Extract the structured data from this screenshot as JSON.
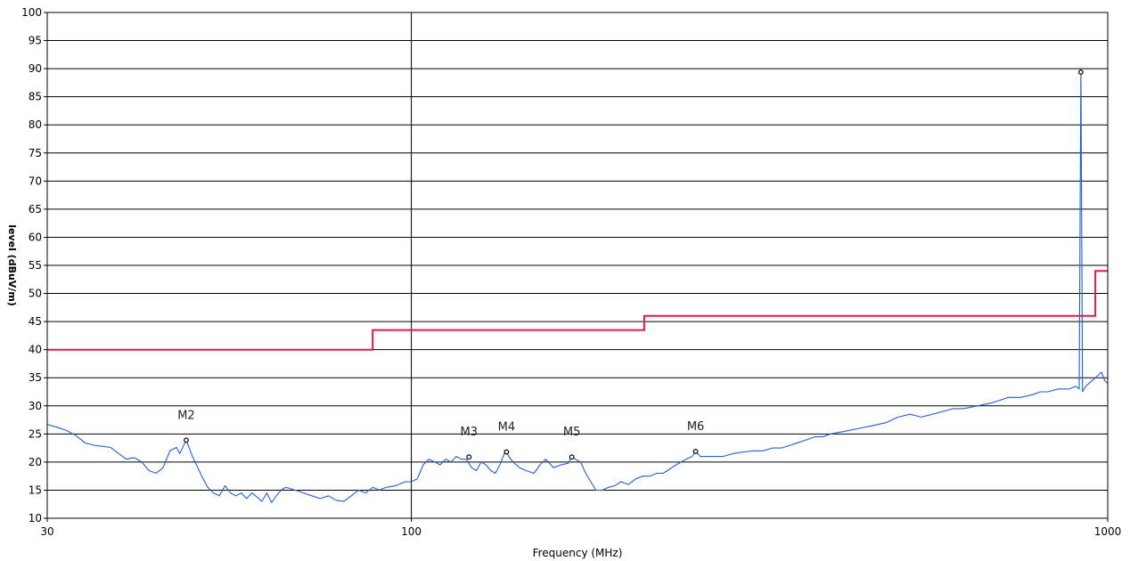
{
  "chart_data": {
    "type": "line",
    "title": "",
    "xlabel": "Frequency (MHz)",
    "ylabel": "level (dBuV/m)",
    "xscale": "log",
    "xlim": [
      30,
      1000
    ],
    "ylim": [
      10,
      100
    ],
    "grid": true,
    "x_ticks": [
      "30",
      "100",
      "1000"
    ],
    "y_ticks": [
      "10",
      "15",
      "20",
      "25",
      "30",
      "35",
      "40",
      "45",
      "50",
      "55",
      "60",
      "65",
      "70",
      "75",
      "80",
      "85",
      "90",
      "95",
      "100"
    ],
    "colors": {
      "limit": "#e8174a",
      "trace": "#1f5fd6",
      "grid": "#000000",
      "marker": "#000000"
    },
    "limit_line": {
      "points": [
        [
          30,
          40
        ],
        [
          88,
          40
        ],
        [
          88,
          43.5
        ],
        [
          216,
          43.5
        ],
        [
          216,
          46
        ],
        [
          960,
          46
        ],
        [
          960,
          54
        ],
        [
          1000,
          54
        ]
      ]
    },
    "trace": {
      "points": [
        [
          30,
          26.7
        ],
        [
          31,
          26.2
        ],
        [
          32,
          25.6
        ],
        [
          33,
          24.7
        ],
        [
          34,
          23.4
        ],
        [
          35,
          23.0
        ],
        [
          36,
          22.8
        ],
        [
          37,
          22.6
        ],
        [
          38,
          21.5
        ],
        [
          39,
          20.5
        ],
        [
          40,
          20.8
        ],
        [
          41,
          20.0
        ],
        [
          42,
          18.5
        ],
        [
          43,
          18.0
        ],
        [
          44,
          19.0
        ],
        [
          45,
          22.0
        ],
        [
          46,
          22.6
        ],
        [
          46.5,
          21.5
        ],
        [
          47.5,
          23.9
        ],
        [
          48.5,
          21.0
        ],
        [
          50,
          17.5
        ],
        [
          51,
          15.5
        ],
        [
          52,
          14.5
        ],
        [
          53,
          14.0
        ],
        [
          54,
          15.8
        ],
        [
          55,
          14.5
        ],
        [
          56,
          14.0
        ],
        [
          57,
          14.5
        ],
        [
          58,
          13.5
        ],
        [
          59,
          14.5
        ],
        [
          60,
          13.8
        ],
        [
          61,
          13.0
        ],
        [
          62,
          14.5
        ],
        [
          63,
          12.8
        ],
        [
          64,
          14.0
        ],
        [
          65,
          15.0
        ],
        [
          66,
          15.5
        ],
        [
          67,
          15.3
        ],
        [
          68,
          15.0
        ],
        [
          69,
          14.8
        ],
        [
          70,
          14.5
        ],
        [
          72,
          14.0
        ],
        [
          74,
          13.5
        ],
        [
          76,
          14.0
        ],
        [
          78,
          13.2
        ],
        [
          80,
          13.0
        ],
        [
          82,
          14.0
        ],
        [
          84,
          15.0
        ],
        [
          86,
          14.5
        ],
        [
          88,
          15.5
        ],
        [
          90,
          15.0
        ],
        [
          92,
          15.5
        ],
        [
          95,
          15.8
        ],
        [
          98,
          16.5
        ],
        [
          100,
          16.5
        ],
        [
          102,
          17.0
        ],
        [
          104,
          19.5
        ],
        [
          106,
          20.5
        ],
        [
          108,
          20.0
        ],
        [
          110,
          19.5
        ],
        [
          112,
          20.5
        ],
        [
          114,
          20.0
        ],
        [
          116,
          21.0
        ],
        [
          118,
          20.5
        ],
        [
          120,
          20.5
        ],
        [
          122,
          19.0
        ],
        [
          124,
          18.5
        ],
        [
          126,
          20.0
        ],
        [
          128,
          19.5
        ],
        [
          130,
          18.5
        ],
        [
          132,
          18.0
        ],
        [
          134,
          19.5
        ],
        [
          136,
          21.5
        ],
        [
          137,
          21.8
        ],
        [
          138,
          21.0
        ],
        [
          140,
          20.0
        ],
        [
          143,
          19.0
        ],
        [
          146,
          18.5
        ],
        [
          150,
          18.0
        ],
        [
          153,
          19.5
        ],
        [
          156,
          20.5
        ],
        [
          160,
          19.0
        ],
        [
          164,
          19.5
        ],
        [
          168,
          19.8
        ],
        [
          170,
          21.0
        ],
        [
          172,
          20.5
        ],
        [
          175,
          20.0
        ],
        [
          178,
          18.0
        ],
        [
          181,
          16.5
        ],
        [
          184,
          15.0
        ],
        [
          188,
          15.0
        ],
        [
          192,
          15.5
        ],
        [
          196,
          15.8
        ],
        [
          200,
          16.5
        ],
        [
          205,
          16.0
        ],
        [
          210,
          17.0
        ],
        [
          215,
          17.5
        ],
        [
          220,
          17.5
        ],
        [
          225,
          18.0
        ],
        [
          230,
          18.0
        ],
        [
          240,
          19.5
        ],
        [
          248,
          20.5
        ],
        [
          253,
          21.0
        ],
        [
          256,
          21.9
        ],
        [
          260,
          21.0
        ],
        [
          270,
          21.0
        ],
        [
          280,
          21.0
        ],
        [
          290,
          21.5
        ],
        [
          300,
          21.8
        ],
        [
          310,
          22.0
        ],
        [
          320,
          22.0
        ],
        [
          330,
          22.5
        ],
        [
          340,
          22.5
        ],
        [
          350,
          23.0
        ],
        [
          360,
          23.5
        ],
        [
          370,
          24.0
        ],
        [
          380,
          24.5
        ],
        [
          390,
          24.5
        ],
        [
          400,
          25.0
        ],
        [
          420,
          25.5
        ],
        [
          440,
          26.0
        ],
        [
          460,
          26.5
        ],
        [
          480,
          27.0
        ],
        [
          500,
          28.0
        ],
        [
          520,
          28.5
        ],
        [
          540,
          28.0
        ],
        [
          560,
          28.5
        ],
        [
          580,
          29.0
        ],
        [
          600,
          29.5
        ],
        [
          620,
          29.5
        ],
        [
          650,
          30.0
        ],
        [
          680,
          30.5
        ],
        [
          700,
          31.0
        ],
        [
          720,
          31.5
        ],
        [
          750,
          31.5
        ],
        [
          780,
          32.0
        ],
        [
          800,
          32.5
        ],
        [
          820,
          32.5
        ],
        [
          850,
          33.0
        ],
        [
          880,
          33.0
        ],
        [
          900,
          33.5
        ],
        [
          910,
          33.0
        ],
        [
          915,
          90.0
        ],
        [
          920,
          32.5
        ],
        [
          930,
          33.5
        ],
        [
          950,
          34.5
        ],
        [
          970,
          35.5
        ],
        [
          980,
          36.0
        ],
        [
          990,
          34.5
        ],
        [
          1000,
          34.0
        ]
      ]
    },
    "markers": [
      {
        "label": "M2",
        "x": 47.5,
        "y": 23.9
      },
      {
        "label": "M3",
        "x": 121,
        "y": 20.9
      },
      {
        "label": "M4",
        "x": 137,
        "y": 21.8
      },
      {
        "label": "M5",
        "x": 170,
        "y": 20.9
      },
      {
        "label": "M6",
        "x": 256,
        "y": 21.9
      },
      {
        "label": "",
        "x": 915,
        "y": 89.4
      }
    ]
  }
}
